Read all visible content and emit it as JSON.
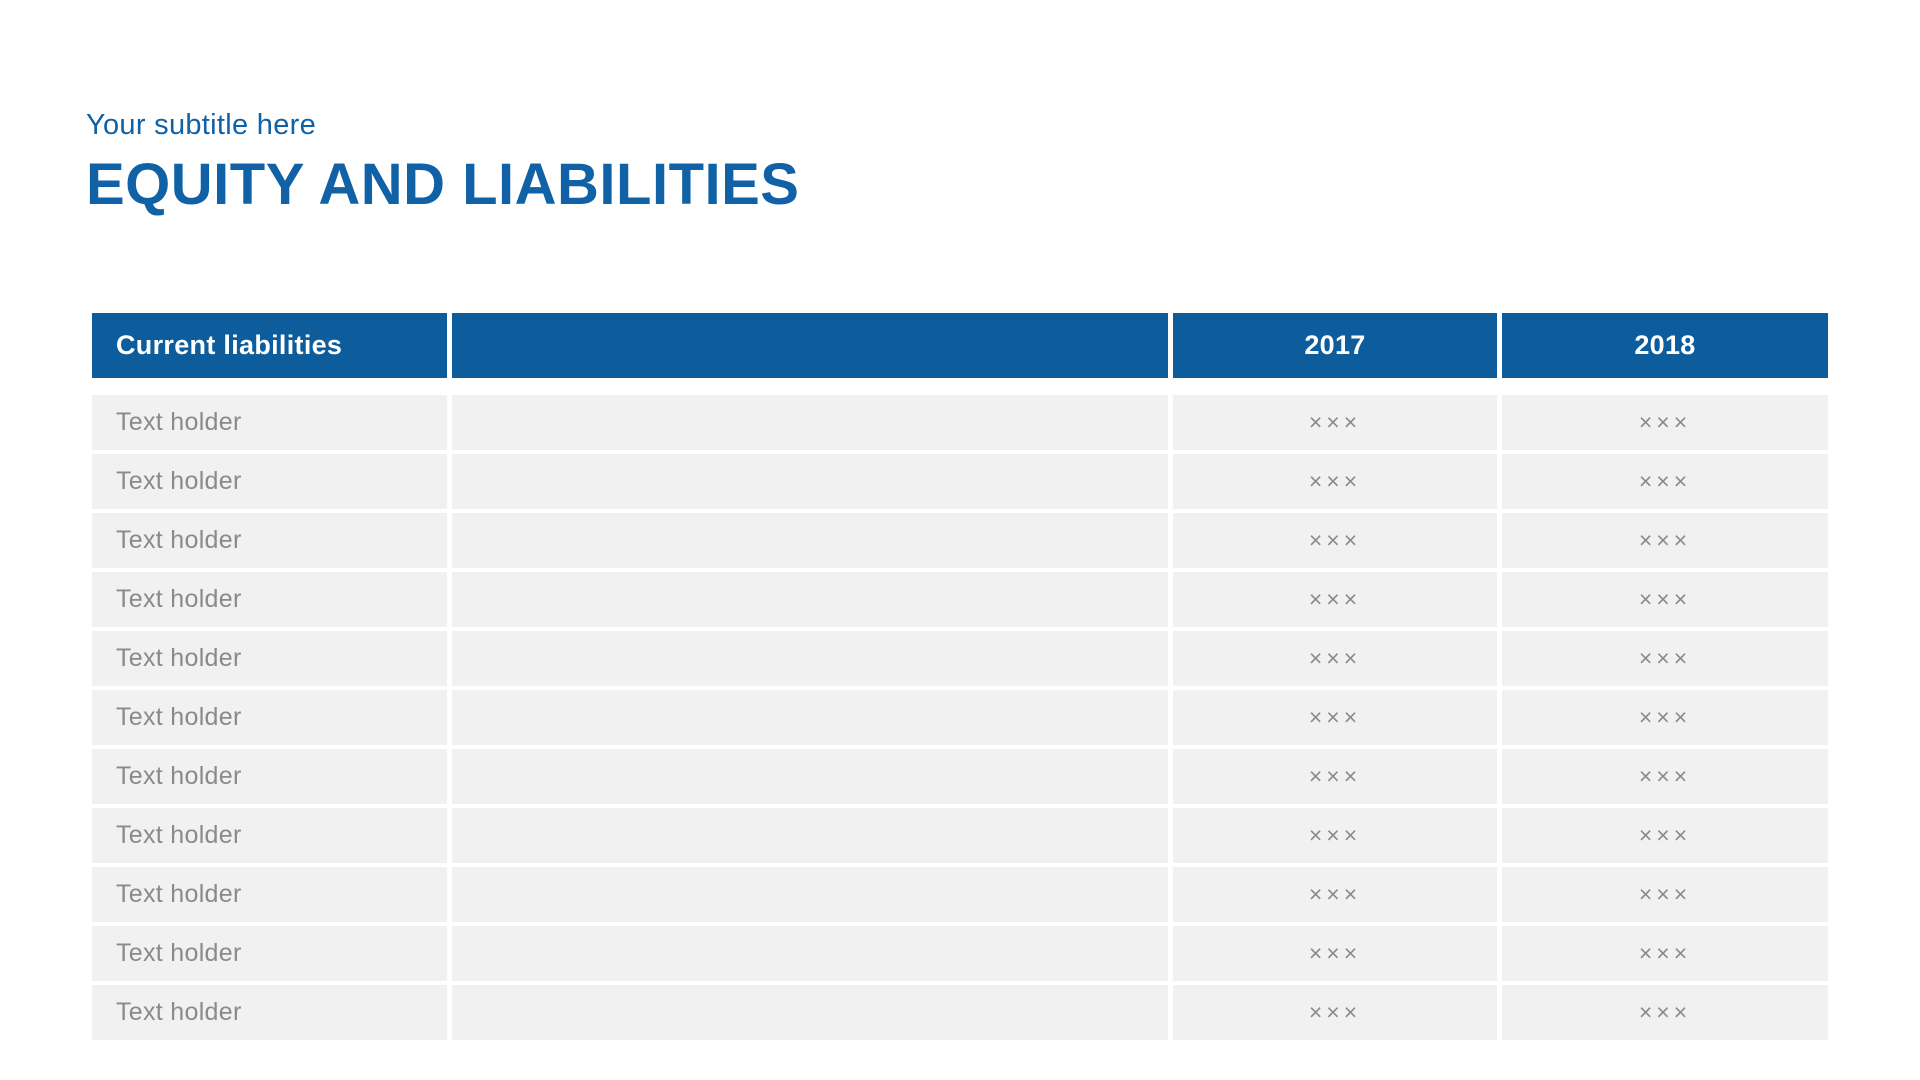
{
  "slide": {
    "subtitle": "Your subtitle here",
    "title": "EQUITY AND LIABILITIES"
  },
  "table": {
    "header": {
      "col1": "Current liabilities",
      "col2": "",
      "col3": "2017",
      "col4": "2018"
    },
    "rows": [
      {
        "label": "Text holder",
        "col2": "",
        "y2017": "×××",
        "y2018": "×××"
      },
      {
        "label": "Text holder",
        "col2": "",
        "y2017": "×××",
        "y2018": "×××"
      },
      {
        "label": "Text holder",
        "col2": "",
        "y2017": "×××",
        "y2018": "×××"
      },
      {
        "label": "Text holder",
        "col2": "",
        "y2017": "×××",
        "y2018": "×××"
      },
      {
        "label": "Text holder",
        "col2": "",
        "y2017": "×××",
        "y2018": "×××"
      },
      {
        "label": "Text holder",
        "col2": "",
        "y2017": "×××",
        "y2018": "×××"
      },
      {
        "label": "Text holder",
        "col2": "",
        "y2017": "×××",
        "y2018": "×××"
      },
      {
        "label": "Text holder",
        "col2": "",
        "y2017": "×××",
        "y2018": "×××"
      },
      {
        "label": "Text holder",
        "col2": "",
        "y2017": "×××",
        "y2018": "×××"
      },
      {
        "label": "Text holder",
        "col2": "",
        "y2017": "×××",
        "y2018": "×××"
      },
      {
        "label": "Text holder",
        "col2": "",
        "y2017": "×××",
        "y2018": "×××"
      }
    ]
  },
  "colors": {
    "accent_blue": "#0d5c9b",
    "title_blue": "#1061a6",
    "row_bg": "#f1f1f1",
    "row_text": "#8a8a8a",
    "header_text": "#ffffff"
  }
}
